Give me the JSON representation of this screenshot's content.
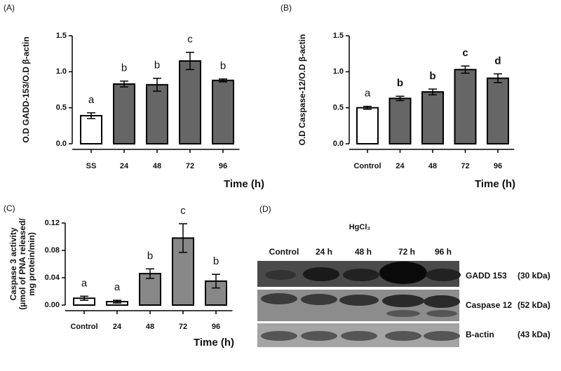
{
  "chart_data": [
    {
      "type": "bar",
      "panel": "(A)",
      "y_label": "O.D GADD-153/O.D β-actin",
      "x_label": "Time (h)",
      "categories": [
        "SS",
        "24",
        "48",
        "72",
        "96"
      ],
      "values": [
        0.39,
        0.83,
        0.82,
        1.15,
        0.88
      ],
      "errors": [
        0.04,
        0.04,
        0.09,
        0.12,
        0.02
      ],
      "colors": [
        "#ffffff",
        "#666666",
        "#666666",
        "#666666",
        "#666666"
      ],
      "annotations": [
        "a",
        "b",
        "b",
        "c",
        "b"
      ],
      "ylim": [
        0,
        1.5
      ],
      "yticks": [
        {
          "value": 0,
          "label": "0.0"
        },
        0.5,
        {
          "value": 1,
          "label": "1.0"
        },
        1.5
      ]
    },
    {
      "type": "bar",
      "panel": "(B)",
      "y_label": "O.D Caspase-12/O.D β-actin",
      "x_label": "Time (h)",
      "categories": [
        "Control",
        "24",
        "48",
        "72",
        "96"
      ],
      "values": [
        0.5,
        0.63,
        0.72,
        1.03,
        0.91
      ],
      "errors": [
        0.02,
        0.03,
        0.04,
        0.05,
        0.06
      ],
      "colors": [
        "#ffffff",
        "#666666",
        "#666666",
        "#666666",
        "#666666"
      ],
      "annotations": [
        "a",
        "b",
        "b",
        "c",
        "d"
      ],
      "ylim": [
        0,
        1.5
      ],
      "yticks": [
        {
          "value": 0,
          "label": "0.0"
        },
        0.5,
        {
          "value": 1,
          "label": "1.0"
        },
        1.5
      ]
    },
    {
      "type": "bar",
      "panel": "(C)",
      "y_label": [
        "Caspase 3 activity",
        "(µmol of PNA released/",
        "mg protein/min)"
      ],
      "x_label": "Time (h)",
      "categories": [
        "Control",
        "24",
        "48",
        "72",
        "96"
      ],
      "values": [
        0.01,
        0.005,
        0.046,
        0.098,
        0.035
      ],
      "errors": [
        0.003,
        0.002,
        0.007,
        0.021,
        0.01
      ],
      "colors": [
        "#ffffff",
        "#ffffff",
        "#888888",
        "#888888",
        "#888888"
      ],
      "annotations": [
        "a",
        "a",
        "b",
        "c",
        "b"
      ],
      "ylim": [
        0,
        0.12
      ],
      "yticks": [
        {
          "value": 0,
          "label": "0.00"
        },
        0.04,
        0.08,
        0.12
      ]
    }
  ],
  "blot": {
    "panel": "(D)",
    "treatment": "HgCl₂",
    "lanes": [
      "Control",
      "24 h",
      "48 h",
      "72 h",
      "96 h"
    ],
    "rows": [
      [
        "GADD 153",
        "(30 kDa)"
      ],
      [
        "Caspase 12",
        "(52 kDa)"
      ],
      [
        "B-actin",
        "(43 kDa)"
      ]
    ]
  }
}
